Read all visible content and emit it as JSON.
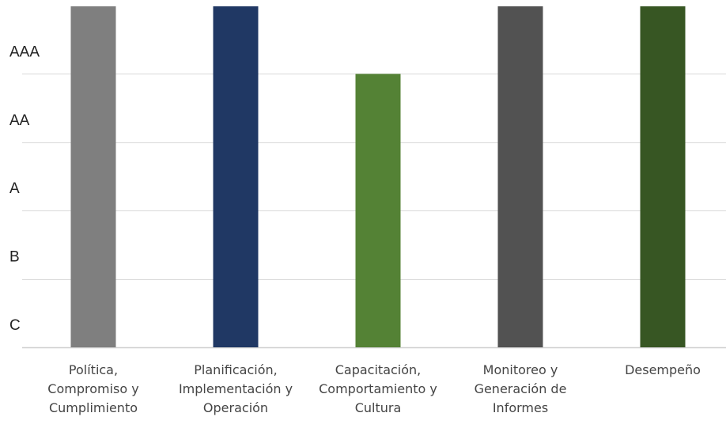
{
  "chart_data": {
    "type": "bar",
    "title": "",
    "xlabel": "",
    "ylabel": "",
    "y_categories": [
      "C",
      "B",
      "A",
      "AA",
      "AAA"
    ],
    "categories": [
      "Política, Compromiso y Cumplimiento",
      "Planificación, Implementación y Operación",
      "Capacitación, Comportamiento y Cultura",
      "Monitoreo y Generación de Informes",
      "Desempeño"
    ],
    "category_lines": [
      [
        "Política,",
        "Compromiso y",
        "Cumplimiento"
      ],
      [
        "Planificación,",
        "Implementación y",
        "Operación"
      ],
      [
        "Capacitación,",
        "Comportamiento y",
        "Cultura"
      ],
      [
        "Monitoreo y",
        "Generación de",
        "Informes"
      ],
      [
        "Desempeño"
      ]
    ],
    "values": [
      "AAA",
      "AAA",
      "AA",
      "AAA",
      "AAA"
    ],
    "ylim": [
      0,
      5
    ],
    "grid": true,
    "legend": "none",
    "colors": [
      "#7f7f7f",
      "#203864",
      "#548235",
      "#525252",
      "#375623"
    ]
  }
}
